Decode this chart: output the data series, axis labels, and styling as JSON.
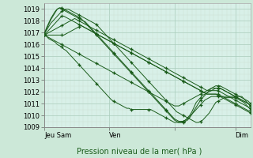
{
  "xlabel": "Pression niveau de la mer( hPa )",
  "xlim": [
    0,
    95
  ],
  "ylim": [
    1009.0,
    1019.5
  ],
  "yticks": [
    1009,
    1010,
    1011,
    1012,
    1013,
    1014,
    1015,
    1016,
    1017,
    1018,
    1019
  ],
  "xtick_positions": [
    0,
    30,
    60,
    88
  ],
  "xtick_labels": [
    "Jeu Sam",
    "Ven",
    "",
    "Dim"
  ],
  "bg_color": "#cce8d8",
  "plot_bg_color": "#d8f0e8",
  "line_color": "#1a5c1a",
  "marker_color": "#1a5c1a",
  "grid_color_major": "#aaccbb",
  "grid_color_minor": "#cce0d4",
  "series": [
    [
      1016.8,
      1016.7,
      1016.5,
      1016.4,
      1016.3,
      1016.2,
      1016.0,
      1015.9,
      1015.8,
      1015.6,
      1015.5,
      1015.3,
      1015.1,
      1014.9,
      1014.7,
      1014.5,
      1014.3,
      1014.1,
      1013.9,
      1013.7,
      1013.5,
      1013.3,
      1013.1,
      1012.9,
      1012.7,
      1012.5,
      1012.3,
      1012.1,
      1011.9,
      1011.7,
      1011.5,
      1011.3,
      1011.2,
      1011.1,
      1011.0,
      1010.9,
      1010.8,
      1010.7,
      1010.6,
      1010.6,
      1010.5,
      1010.5,
      1010.5,
      1010.5,
      1010.5,
      1010.5,
      1010.5,
      1010.5,
      1010.5,
      1010.5,
      1010.4,
      1010.3,
      1010.2,
      1010.1,
      1010.0,
      1009.9,
      1009.8,
      1009.7,
      1009.6,
      1009.5,
      1009.4,
      1009.4,
      1009.4,
      1009.4,
      1009.5,
      1009.6,
      1009.7,
      1009.9,
      1010.1,
      1010.3,
      1010.5,
      1010.7,
      1010.9,
      1011.1,
      1011.3,
      1011.4,
      1011.5,
      1011.6,
      1011.6,
      1011.6,
      1011.6,
      1011.6,
      1011.6,
      1011.6,
      1011.6,
      1011.6,
      1011.6,
      1011.6,
      1011.6,
      1011.6,
      1011.6,
      1011.6,
      1011.4,
      1011.2,
      1011.0,
      1010.8
    ],
    [
      1016.8,
      1016.7,
      1016.6,
      1016.5,
      1016.4,
      1016.3,
      1016.2,
      1016.1,
      1016.0,
      1015.9,
      1015.8,
      1015.7,
      1015.6,
      1015.5,
      1015.4,
      1015.3,
      1015.2,
      1015.1,
      1015.0,
      1014.9,
      1014.8,
      1014.7,
      1014.6,
      1014.5,
      1014.4,
      1014.3,
      1014.2,
      1014.1,
      1014.0,
      1013.9,
      1013.8,
      1013.7,
      1013.6,
      1013.5,
      1013.4,
      1013.3,
      1013.2,
      1013.1,
      1013.0,
      1012.9,
      1012.8,
      1012.7,
      1012.6,
      1012.5,
      1012.4,
      1012.3,
      1012.2,
      1012.1,
      1012.0,
      1011.9,
      1011.8,
      1011.7,
      1011.6,
      1011.5,
      1011.4,
      1011.3,
      1011.2,
      1011.1,
      1011.0,
      1010.9,
      1010.8,
      1010.8,
      1010.8,
      1010.9,
      1011.0,
      1011.1,
      1011.2,
      1011.3,
      1011.4,
      1011.5,
      1011.6,
      1011.7,
      1011.8,
      1011.9,
      1012.0,
      1012.1,
      1012.2,
      1012.3,
      1012.3,
      1012.3,
      1012.3,
      1012.3,
      1012.2,
      1012.1,
      1012.0,
      1011.9,
      1011.8,
      1011.7,
      1011.6,
      1011.5,
      1011.4,
      1011.3,
      1011.2,
      1011.1,
      1011.0,
      1010.8
    ],
    [
      1016.8,
      1016.8,
      1016.8,
      1016.8,
      1016.8,
      1016.8,
      1016.8,
      1016.8,
      1016.8,
      1016.8,
      1016.9,
      1017.0,
      1017.1,
      1017.2,
      1017.3,
      1017.4,
      1017.5,
      1017.6,
      1017.5,
      1017.4,
      1017.3,
      1017.2,
      1017.1,
      1017.0,
      1016.9,
      1016.8,
      1016.7,
      1016.6,
      1016.5,
      1016.4,
      1016.3,
      1016.2,
      1016.1,
      1016.0,
      1015.9,
      1015.8,
      1015.7,
      1015.6,
      1015.5,
      1015.4,
      1015.3,
      1015.2,
      1015.1,
      1015.0,
      1014.9,
      1014.8,
      1014.7,
      1014.6,
      1014.5,
      1014.4,
      1014.3,
      1014.2,
      1014.1,
      1014.0,
      1013.9,
      1013.8,
      1013.7,
      1013.6,
      1013.5,
      1013.4,
      1013.3,
      1013.2,
      1013.1,
      1013.0,
      1012.9,
      1012.8,
      1012.7,
      1012.6,
      1012.5,
      1012.4,
      1012.3,
      1012.2,
      1012.1,
      1012.0,
      1011.9,
      1011.8,
      1011.8,
      1011.8,
      1011.8,
      1011.8,
      1011.8,
      1011.7,
      1011.6,
      1011.5,
      1011.4,
      1011.3,
      1011.2,
      1011.1,
      1011.0,
      1010.9,
      1010.8,
      1010.7,
      1010.6,
      1010.5,
      1010.4,
      1010.3
    ],
    [
      1016.8,
      1016.9,
      1017.0,
      1017.1,
      1017.2,
      1017.3,
      1017.4,
      1017.5,
      1017.6,
      1017.7,
      1017.8,
      1017.9,
      1018.0,
      1018.1,
      1018.2,
      1018.1,
      1018.0,
      1017.9,
      1017.8,
      1017.7,
      1017.6,
      1017.5,
      1017.4,
      1017.3,
      1017.2,
      1017.1,
      1017.0,
      1016.9,
      1016.8,
      1016.7,
      1016.6,
      1016.5,
      1016.4,
      1016.3,
      1016.2,
      1016.1,
      1016.0,
      1015.9,
      1015.8,
      1015.7,
      1015.6,
      1015.5,
      1015.4,
      1015.3,
      1015.2,
      1015.1,
      1015.0,
      1014.9,
      1014.8,
      1014.7,
      1014.6,
      1014.5,
      1014.4,
      1014.3,
      1014.2,
      1014.1,
      1014.0,
      1013.9,
      1013.8,
      1013.7,
      1013.6,
      1013.5,
      1013.4,
      1013.3,
      1013.2,
      1013.1,
      1013.0,
      1012.9,
      1012.8,
      1012.7,
      1012.6,
      1012.5,
      1012.4,
      1012.3,
      1012.2,
      1012.1,
      1012.1,
      1012.1,
      1012.1,
      1012.1,
      1012.1,
      1012.0,
      1011.9,
      1011.8,
      1011.7,
      1011.6,
      1011.5,
      1011.4,
      1011.3,
      1011.2,
      1011.1,
      1011.0,
      1010.9,
      1010.8,
      1010.7,
      1010.6
    ],
    [
      1016.8,
      1017.0,
      1017.2,
      1017.4,
      1017.6,
      1017.8,
      1018.0,
      1018.2,
      1018.4,
      1018.4,
      1018.3,
      1018.2,
      1018.1,
      1018.0,
      1017.9,
      1017.8,
      1017.7,
      1017.6,
      1017.5,
      1017.4,
      1017.3,
      1017.2,
      1017.1,
      1017.0,
      1016.9,
      1016.8,
      1016.7,
      1016.6,
      1016.5,
      1016.4,
      1016.3,
      1016.2,
      1016.1,
      1016.0,
      1015.9,
      1015.8,
      1015.7,
      1015.6,
      1015.5,
      1015.4,
      1015.3,
      1015.2,
      1015.1,
      1015.0,
      1014.9,
      1014.8,
      1014.7,
      1014.6,
      1014.5,
      1014.4,
      1014.3,
      1014.2,
      1014.1,
      1014.0,
      1013.9,
      1013.8,
      1013.7,
      1013.6,
      1013.5,
      1013.4,
      1013.3,
      1013.2,
      1013.1,
      1013.0,
      1012.9,
      1012.8,
      1012.7,
      1012.6,
      1012.5,
      1012.4,
      1012.3,
      1012.2,
      1012.1,
      1012.0,
      1011.9,
      1011.8,
      1011.8,
      1011.8,
      1011.8,
      1011.8,
      1011.7,
      1011.6,
      1011.5,
      1011.4,
      1011.3,
      1011.2,
      1011.1,
      1011.0,
      1010.9,
      1010.8,
      1010.7,
      1010.6,
      1010.5,
      1010.4,
      1010.3,
      1010.2
    ],
    [
      1016.9,
      1017.2,
      1017.5,
      1017.8,
      1018.0,
      1018.2,
      1018.4,
      1018.6,
      1018.8,
      1018.9,
      1019.0,
      1019.0,
      1018.9,
      1018.8,
      1018.7,
      1018.6,
      1018.5,
      1018.4,
      1018.3,
      1018.2,
      1018.1,
      1018.0,
      1017.9,
      1017.8,
      1017.7,
      1017.5,
      1017.3,
      1017.1,
      1016.9,
      1016.7,
      1016.5,
      1016.3,
      1016.1,
      1015.9,
      1015.7,
      1015.5,
      1015.3,
      1015.1,
      1014.9,
      1014.7,
      1014.5,
      1014.3,
      1014.1,
      1013.9,
      1013.7,
      1013.5,
      1013.3,
      1013.1,
      1012.9,
      1012.7,
      1012.5,
      1012.3,
      1012.1,
      1011.9,
      1011.7,
      1011.5,
      1011.3,
      1011.1,
      1010.9,
      1010.7,
      1010.5,
      1010.3,
      1010.2,
      1010.1,
      1010.0,
      1009.9,
      1009.8,
      1009.7,
      1009.6,
      1009.5,
      1009.4,
      1009.4,
      1009.5,
      1009.6,
      1009.8,
      1010.0,
      1010.2,
      1010.5,
      1010.8,
      1011.1,
      1011.2,
      1011.3,
      1011.4,
      1011.5,
      1011.5,
      1011.5,
      1011.5,
      1011.5,
      1011.5,
      1011.4,
      1011.3,
      1011.2,
      1011.1,
      1010.9,
      1010.7,
      1010.5
    ],
    [
      1016.9,
      1017.3,
      1017.7,
      1018.1,
      1018.4,
      1018.7,
      1019.0,
      1019.1,
      1019.0,
      1018.9,
      1018.8,
      1018.7,
      1018.6,
      1018.5,
      1018.4,
      1018.3,
      1018.2,
      1018.1,
      1018.0,
      1017.9,
      1017.7,
      1017.5,
      1017.3,
      1017.1,
      1016.9,
      1016.7,
      1016.5,
      1016.3,
      1016.1,
      1015.9,
      1015.7,
      1015.5,
      1015.3,
      1015.1,
      1014.9,
      1014.7,
      1014.5,
      1014.3,
      1014.1,
      1013.9,
      1013.7,
      1013.5,
      1013.3,
      1013.1,
      1012.9,
      1012.7,
      1012.5,
      1012.3,
      1012.1,
      1011.9,
      1011.7,
      1011.5,
      1011.3,
      1011.1,
      1010.9,
      1010.7,
      1010.5,
      1010.3,
      1010.1,
      1009.9,
      1009.7,
      1009.6,
      1009.5,
      1009.5,
      1009.5,
      1009.6,
      1009.8,
      1010.0,
      1010.3,
      1010.7,
      1011.1,
      1011.3,
      1011.5,
      1011.7,
      1011.8,
      1011.9,
      1012.0,
      1012.1,
      1012.2,
      1012.3,
      1012.3,
      1012.3,
      1012.2,
      1012.1,
      1012.0,
      1011.9,
      1011.8,
      1011.7,
      1011.6,
      1011.5,
      1011.4,
      1011.3,
      1011.2,
      1011.1,
      1011.0,
      1010.8
    ],
    [
      1016.9,
      1017.4,
      1017.8,
      1018.2,
      1018.5,
      1018.8,
      1019.0,
      1019.1,
      1019.1,
      1019.0,
      1018.9,
      1018.8,
      1018.7,
      1018.6,
      1018.5,
      1018.4,
      1018.3,
      1018.2,
      1018.0,
      1017.8,
      1017.6,
      1017.4,
      1017.2,
      1017.0,
      1016.8,
      1016.6,
      1016.4,
      1016.2,
      1016.0,
      1015.8,
      1015.6,
      1015.4,
      1015.2,
      1015.0,
      1014.8,
      1014.6,
      1014.4,
      1014.2,
      1014.0,
      1013.8,
      1013.6,
      1013.4,
      1013.2,
      1013.0,
      1012.8,
      1012.6,
      1012.4,
      1012.2,
      1012.0,
      1011.8,
      1011.6,
      1011.4,
      1011.2,
      1011.0,
      1010.8,
      1010.6,
      1010.4,
      1010.2,
      1010.0,
      1009.8,
      1009.6,
      1009.5,
      1009.4,
      1009.4,
      1009.4,
      1009.5,
      1009.6,
      1009.8,
      1010.1,
      1010.4,
      1010.7,
      1011.0,
      1011.3,
      1011.5,
      1011.7,
      1011.9,
      1012.1,
      1012.3,
      1012.4,
      1012.5,
      1012.5,
      1012.5,
      1012.4,
      1012.3,
      1012.2,
      1012.1,
      1012.0,
      1011.9,
      1011.8,
      1011.7,
      1011.6,
      1011.5,
      1011.4,
      1011.3,
      1011.2,
      1011.0
    ]
  ],
  "marker_every": 8
}
